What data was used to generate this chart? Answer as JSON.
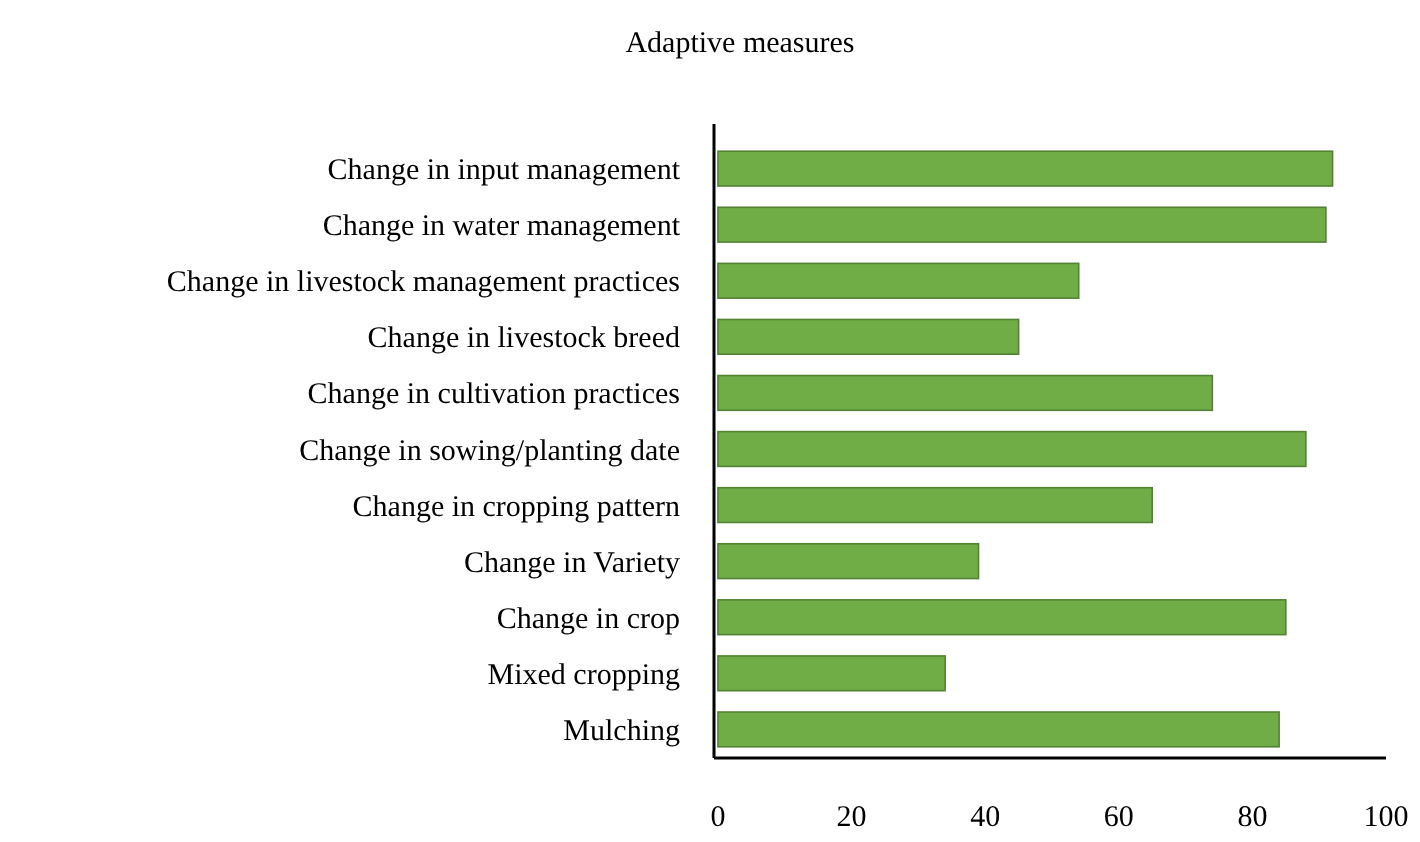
{
  "chart_data": {
    "type": "bar",
    "orientation": "horizontal",
    "title": "Adaptive measures",
    "categories": [
      "Change in input management",
      "Change in water management",
      "Change in livestock management practices",
      "Change in livestock breed",
      "Change in cultivation practices",
      "Change in sowing/planting date",
      "Change in cropping pattern",
      "Change in Variety",
      "Change in crop",
      "Mixed cropping",
      "Mulching"
    ],
    "values": [
      92,
      91,
      54,
      45,
      74,
      88,
      65,
      39,
      85,
      34,
      84
    ],
    "color": "#70ad47",
    "xlim": [
      0,
      100
    ],
    "xticks": [
      0,
      20,
      40,
      60,
      80,
      100
    ],
    "grid": false
  }
}
